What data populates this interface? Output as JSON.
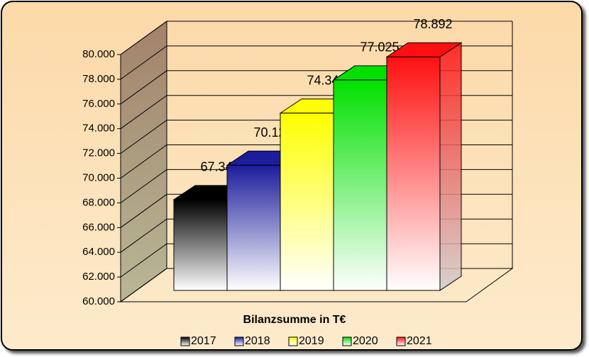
{
  "chart_data": {
    "type": "bar3d",
    "x_label": "Bilanzsumme in T€",
    "categories": [
      "2017",
      "2018",
      "2019",
      "2020",
      "2021"
    ],
    "values": [
      67347,
      70128,
      74343,
      77025,
      78892
    ],
    "value_labels": [
      "67.347",
      "70.128",
      "74.343",
      "77.025",
      "78.892"
    ],
    "colors": [
      "#000000",
      "#1c1c9c",
      "#ffff00",
      "#00e000",
      "#ff1010"
    ],
    "ylim": [
      60000,
      80000
    ],
    "yticks": [
      {
        "value": 60000,
        "label": "60.000"
      },
      {
        "value": 62000,
        "label": "62.000"
      },
      {
        "value": 64000,
        "label": "64.000"
      },
      {
        "value": 66000,
        "label": "66.000"
      },
      {
        "value": 68000,
        "label": "68.000"
      },
      {
        "value": 70000,
        "label": "70.000"
      },
      {
        "value": 72000,
        "label": "72.000"
      },
      {
        "value": 74000,
        "label": "74.000"
      },
      {
        "value": 76000,
        "label": "76.000"
      },
      {
        "value": 78000,
        "label": "78.000"
      },
      {
        "value": 80000,
        "label": "80.000"
      }
    ],
    "grid": true,
    "legend": "bottom"
  }
}
